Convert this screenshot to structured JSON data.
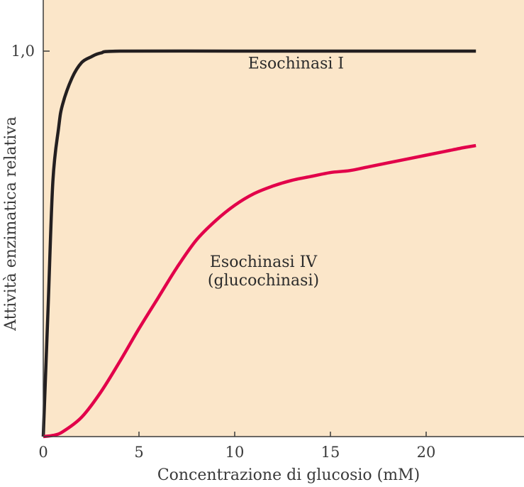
{
  "chart_data": {
    "type": "line",
    "xlabel": "Concentrazione di glucosio (mM)",
    "ylabel": "Attività enzimatica relativa",
    "xlim": [
      0,
      25
    ],
    "ylim": [
      0,
      1.0
    ],
    "x_ticks": [
      {
        "value": 0,
        "label": "0"
      },
      {
        "value": 5,
        "label": "5"
      },
      {
        "value": 10,
        "label": "10"
      },
      {
        "value": 15,
        "label": "15"
      },
      {
        "value": 20,
        "label": "20"
      }
    ],
    "y_ticks": [
      {
        "value": 1.0,
        "label": "1,0"
      }
    ],
    "background_color": "#fbe6c9",
    "series": [
      {
        "name": "Esochinasi I",
        "color": "#231f20",
        "points": [
          [
            0,
            0
          ],
          [
            0.25,
            0.33
          ],
          [
            0.5,
            0.66
          ],
          [
            0.8,
            0.8
          ],
          [
            1,
            0.86
          ],
          [
            1.5,
            0.93
          ],
          [
            2,
            0.97
          ],
          [
            2.5,
            0.985
          ],
          [
            3,
            0.995
          ],
          [
            4,
            1.0
          ],
          [
            10,
            1.0
          ],
          [
            15,
            1.0
          ],
          [
            20,
            1.0
          ],
          [
            22.6,
            1.0
          ]
        ]
      },
      {
        "name": "Esochinasi IV",
        "color": "#e2004a",
        "points": [
          [
            0,
            0
          ],
          [
            0.5,
            0.003
          ],
          [
            1,
            0.012
          ],
          [
            2,
            0.05
          ],
          [
            3,
            0.115
          ],
          [
            4,
            0.195
          ],
          [
            5,
            0.28
          ],
          [
            6,
            0.36
          ],
          [
            7,
            0.44
          ],
          [
            8,
            0.51
          ],
          [
            9,
            0.56
          ],
          [
            10,
            0.6
          ],
          [
            11,
            0.63
          ],
          [
            12,
            0.65
          ],
          [
            13,
            0.665
          ],
          [
            14,
            0.675
          ],
          [
            15,
            0.685
          ],
          [
            16,
            0.69
          ],
          [
            17,
            0.7
          ],
          [
            18,
            0.71
          ],
          [
            19,
            0.72
          ],
          [
            20,
            0.73
          ],
          [
            21,
            0.74
          ],
          [
            22,
            0.75
          ],
          [
            22.6,
            0.755
          ]
        ]
      }
    ],
    "annotations": [
      {
        "id": "esochinasi-1",
        "lines": [
          "Esochinasi I"
        ],
        "x": 13.2,
        "y": 0.955
      },
      {
        "id": "esochinasi-4",
        "lines": [
          "Esochinasi IV",
          "(glucochinasi)"
        ],
        "x": 11.5,
        "y": 0.44
      }
    ]
  }
}
